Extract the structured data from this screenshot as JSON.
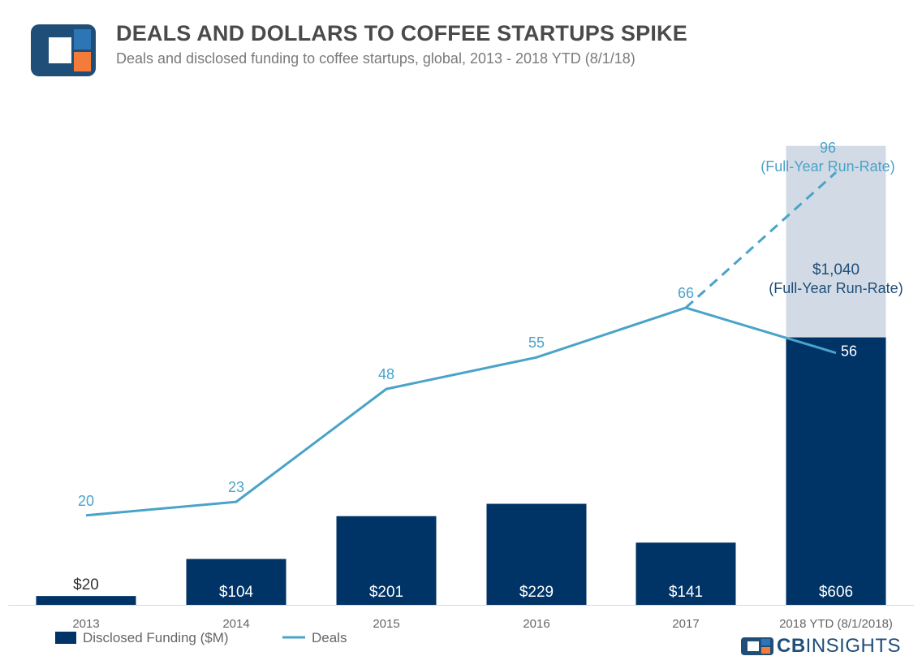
{
  "header": {
    "title": "DEALS AND DOLLARS TO COFFEE STARTUPS SPIKE",
    "subtitle": "Deals and disclosed funding to coffee startups, global, 2013 - 2018 YTD (8/1/18)"
  },
  "colors": {
    "bar": "#003366",
    "run_rate_bar": "#d2dbe5",
    "line": "#4aa3c8",
    "axis_label": "#666666",
    "title": "#4a4a4a",
    "logo_navy": "#1f4e79",
    "logo_blue": "#2e75b6",
    "logo_orange": "#f47b3a"
  },
  "chart_data": {
    "type": "bar",
    "categories": [
      "2013",
      "2014",
      "2015",
      "2016",
      "2017",
      "2018 YTD (8/1/2018)"
    ],
    "series": [
      {
        "name": "Disclosed Funding ($M)",
        "type": "bar",
        "values": [
          20,
          104,
          201,
          229,
          141,
          606
        ],
        "labels": [
          "$20",
          "$104",
          "$201",
          "$229",
          "$141",
          "$606"
        ]
      },
      {
        "name": "Deals",
        "type": "line",
        "values": [
          20,
          23,
          48,
          55,
          66,
          56
        ]
      }
    ],
    "run_rate": {
      "funding_value": 1040,
      "funding_label": "$1,040",
      "funding_note": "(Full-Year Run-Rate)",
      "deals_value": 96,
      "deals_label": "96",
      "deals_note": "(Full-Year Run-Rate)"
    },
    "legend": {
      "position": "bottom-left",
      "entries": [
        "Disclosed Funding ($M)",
        "Deals"
      ]
    },
    "grid": false
  },
  "brand": {
    "bold": "CB",
    "rest": "INSIGHTS"
  }
}
